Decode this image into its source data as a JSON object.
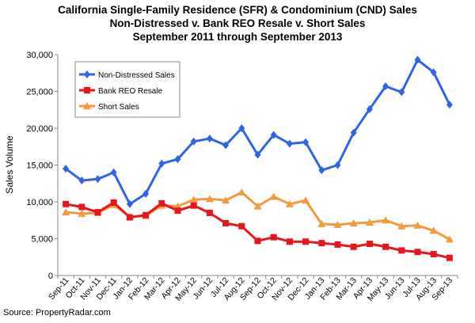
{
  "chart_data": {
    "type": "line",
    "title_lines": [
      "California Single-Family Residence (SFR) & Condominium (CND) Sales",
      "Non-Distressed v. Bank REO Resale v. Short Sales",
      "September 2011 through September 2013"
    ],
    "xlabel": "",
    "ylabel": "Sales Volume",
    "ylim": [
      0,
      30000
    ],
    "yticks": [
      "0",
      "5,000",
      "10,000",
      "15,000",
      "20,000",
      "25,000",
      "30,000"
    ],
    "categories": [
      "Sep-11",
      "Oct-11",
      "Nov-11",
      "Dec-11",
      "Jan-12",
      "Feb-12",
      "Mar-12",
      "Apr-12",
      "May-12",
      "Jun-12",
      "Jul-12",
      "Aug-12",
      "Sep-12",
      "Oct-12",
      "Nov-12",
      "Dec-12",
      "Jan-13",
      "Feb-13",
      "Mar-13",
      "Apr-13",
      "May-13",
      "Jun-13",
      "Jul-13",
      "Aug-13",
      "Sep-13"
    ],
    "grid": false,
    "legend_position": "top-left",
    "series": [
      {
        "name": "Non-Distressed Sales",
        "color": "#2f63e8",
        "marker": "diamond",
        "values": [
          14500,
          12900,
          13100,
          14000,
          9700,
          11100,
          15200,
          15800,
          18200,
          18600,
          17700,
          20000,
          16400,
          19100,
          17900,
          18100,
          14300,
          15000,
          19400,
          22600,
          25700,
          24900,
          29300,
          27600,
          23200
        ]
      },
      {
        "name": "Bank REO Resale",
        "color": "#e8161c",
        "marker": "square",
        "values": [
          9700,
          9300,
          8600,
          9900,
          7900,
          8200,
          9800,
          8800,
          9500,
          8500,
          7100,
          6700,
          4700,
          5200,
          4600,
          4600,
          4400,
          4200,
          3900,
          4300,
          3900,
          3400,
          3200,
          2900,
          2400
        ]
      },
      {
        "name": "Short Sales",
        "color": "#f39a3f",
        "marker": "triangle",
        "values": [
          8600,
          8400,
          8500,
          9600,
          8000,
          8100,
          9500,
          9400,
          10300,
          10400,
          10200,
          11300,
          9400,
          10700,
          9700,
          10200,
          7000,
          6900,
          7100,
          7200,
          7500,
          6700,
          6800,
          6100,
          4900
        ]
      }
    ]
  },
  "source": "Source: PropertyRadar.com"
}
